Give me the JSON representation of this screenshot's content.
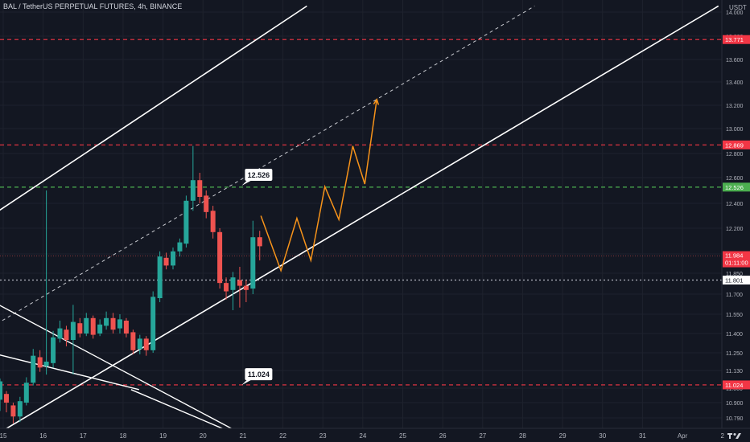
{
  "header": {
    "title": "BAL / TetherUS PERPETUAL FUTURES, 4h, BINANCE",
    "currency": "USDT"
  },
  "logo": {
    "name": "tradingview-logo-icon"
  },
  "colors": {
    "background": "#131722",
    "up": "#26a69a",
    "down": "#ef5350",
    "resistance": "#f23645",
    "support_level": "#4caf50",
    "projection": "#f7931a",
    "channel": "#ffffff",
    "grid": "#1e222d"
  },
  "chart_data": {
    "type": "candlestick",
    "timeframe": "4h",
    "x_ticks": [
      "15",
      "16",
      "17",
      "18",
      "19",
      "20",
      "21",
      "22",
      "23",
      "24",
      "25",
      "26",
      "27",
      "28",
      "29",
      "30",
      "31",
      "Apr",
      "2",
      "3"
    ],
    "y_ticks": [
      "14.000",
      "13.800",
      "13.600",
      "13.400",
      "13.200",
      "13.000",
      "12.800",
      "12.600",
      "12.400",
      "12.200",
      "12.000",
      "11.850",
      "11.700",
      "11.550",
      "11.400",
      "11.250",
      "11.130",
      "11.000",
      "10.900",
      "10.790"
    ],
    "ylim": [
      10.7,
      14.05
    ],
    "candles": [
      {
        "t": 14.92,
        "o": 10.92,
        "c": 11.05,
        "h": 11.07,
        "l": 10.84
      },
      {
        "t": 15.08,
        "o": 10.96,
        "c": 10.9,
        "h": 10.98,
        "l": 10.83
      },
      {
        "t": 15.25,
        "o": 10.88,
        "c": 10.8,
        "h": 10.9,
        "l": 10.75
      },
      {
        "t": 15.42,
        "o": 10.8,
        "c": 10.91,
        "h": 10.94,
        "l": 10.76
      },
      {
        "t": 15.58,
        "o": 10.9,
        "c": 11.04,
        "h": 11.08,
        "l": 10.88
      },
      {
        "t": 15.75,
        "o": 11.04,
        "c": 11.23,
        "h": 11.28,
        "l": 11.02
      },
      {
        "t": 15.92,
        "o": 11.22,
        "c": 11.15,
        "h": 11.27,
        "l": 11.12
      },
      {
        "t": 16.08,
        "o": 11.16,
        "c": 11.19,
        "h": 12.5,
        "l": 11.1
      },
      {
        "t": 16.25,
        "o": 11.18,
        "c": 11.37,
        "h": 11.42,
        "l": 11.15
      },
      {
        "t": 16.42,
        "o": 11.36,
        "c": 11.44,
        "h": 11.5,
        "l": 11.33
      },
      {
        "t": 16.58,
        "o": 11.43,
        "c": 11.35,
        "h": 11.46,
        "l": 11.3
      },
      {
        "t": 16.75,
        "o": 11.35,
        "c": 11.49,
        "h": 11.62,
        "l": 11.1
      },
      {
        "t": 16.92,
        "o": 11.48,
        "c": 11.4,
        "h": 11.52,
        "l": 11.37
      },
      {
        "t": 17.08,
        "o": 11.4,
        "c": 11.52,
        "h": 11.56,
        "l": 11.38
      },
      {
        "t": 17.25,
        "o": 11.52,
        "c": 11.39,
        "h": 11.54,
        "l": 11.36
      },
      {
        "t": 17.42,
        "o": 11.4,
        "c": 11.47,
        "h": 11.51,
        "l": 11.38
      },
      {
        "t": 17.58,
        "o": 11.46,
        "c": 11.52,
        "h": 11.57,
        "l": 11.43
      },
      {
        "t": 17.75,
        "o": 11.52,
        "c": 11.43,
        "h": 11.56,
        "l": 11.4
      },
      {
        "t": 17.92,
        "o": 11.44,
        "c": 11.51,
        "h": 11.55,
        "l": 11.4
      },
      {
        "t": 18.08,
        "o": 11.5,
        "c": 11.4,
        "h": 11.52,
        "l": 11.37
      },
      {
        "t": 18.25,
        "o": 11.41,
        "c": 11.27,
        "h": 11.43,
        "l": 11.24
      },
      {
        "t": 18.42,
        "o": 11.28,
        "c": 11.36,
        "h": 11.39,
        "l": 11.24
      },
      {
        "t": 18.58,
        "o": 11.36,
        "c": 11.27,
        "h": 11.38,
        "l": 11.23
      },
      {
        "t": 18.75,
        "o": 11.27,
        "c": 11.68,
        "h": 11.72,
        "l": 11.25
      },
      {
        "t": 18.92,
        "o": 11.67,
        "c": 11.98,
        "h": 12.02,
        "l": 11.64
      },
      {
        "t": 19.08,
        "o": 11.97,
        "c": 11.91,
        "h": 12.01,
        "l": 11.88
      },
      {
        "t": 19.25,
        "o": 11.91,
        "c": 12.02,
        "h": 12.05,
        "l": 11.88
      },
      {
        "t": 19.42,
        "o": 12.02,
        "c": 12.09,
        "h": 12.12,
        "l": 11.98
      },
      {
        "t": 19.58,
        "o": 12.08,
        "c": 12.42,
        "h": 12.46,
        "l": 12.05
      },
      {
        "t": 19.75,
        "o": 12.42,
        "c": 12.58,
        "h": 12.86,
        "l": 12.34
      },
      {
        "t": 19.92,
        "o": 12.58,
        "c": 12.45,
        "h": 12.64,
        "l": 12.4
      },
      {
        "t": 20.08,
        "o": 12.46,
        "c": 12.33,
        "h": 12.5,
        "l": 12.28
      },
      {
        "t": 20.25,
        "o": 12.34,
        "c": 12.17,
        "h": 12.38,
        "l": 12.12
      },
      {
        "t": 20.42,
        "o": 12.17,
        "c": 11.78,
        "h": 12.2,
        "l": 11.74
      },
      {
        "t": 20.58,
        "o": 11.78,
        "c": 11.72,
        "h": 11.82,
        "l": 11.66
      },
      {
        "t": 20.75,
        "o": 11.73,
        "c": 11.82,
        "h": 11.86,
        "l": 11.58
      },
      {
        "t": 20.92,
        "o": 11.8,
        "c": 11.76,
        "h": 11.9,
        "l": 11.6
      },
      {
        "t": 21.08,
        "o": 11.76,
        "c": 11.73,
        "h": 11.8,
        "l": 11.64
      },
      {
        "t": 21.25,
        "o": 11.74,
        "c": 12.13,
        "h": 12.26,
        "l": 11.7
      },
      {
        "t": 21.42,
        "o": 12.13,
        "c": 12.06,
        "h": 12.18,
        "l": 11.95
      }
    ],
    "price_levels": [
      {
        "value": 13.771,
        "label": "13.771",
        "style": "dashed",
        "color": "#f23645"
      },
      {
        "value": 12.869,
        "label": "12.869",
        "style": "dashed",
        "color": "#f23645"
      },
      {
        "value": 12.526,
        "label": "12.526",
        "style": "dashed",
        "color": "#4caf50"
      },
      {
        "value": 11.801,
        "label": "11.801",
        "style": "dotted",
        "color": "#b2b5be"
      },
      {
        "value": 11.024,
        "label": "11.024",
        "style": "dashed",
        "color": "#f23645"
      }
    ],
    "current_price": {
      "value": 11.984,
      "label": "11.984",
      "countdown": "01:11:00"
    },
    "callouts": [
      {
        "label": "12.526",
        "t": 21.05,
        "value": 12.62
      },
      {
        "label": "11.024",
        "t": 21.05,
        "value": 11.1
      }
    ],
    "channel_upper": [
      [
        14.7,
        12.3
      ],
      [
        22.6,
        14.05
      ]
    ],
    "channel_lower": [
      [
        15.0,
        10.7
      ],
      [
        32.9,
        14.05
      ]
    ],
    "channel_mid_dashed": [
      [
        14.7,
        11.45
      ],
      [
        28.3,
        14.05
      ]
    ],
    "descending_lines": [
      [
        [
          14.7,
          11.65
        ],
        [
          20.8,
          10.7
        ]
      ],
      [
        [
          14.7,
          11.25
        ],
        [
          18.4,
          10.99
        ]
      ],
      [
        [
          18.2,
          10.99
        ],
        [
          20.6,
          10.7
        ]
      ]
    ],
    "projection_path": [
      [
        21.45,
        12.3
      ],
      [
        21.95,
        11.87
      ],
      [
        22.35,
        12.28
      ],
      [
        22.7,
        11.95
      ],
      [
        23.05,
        12.53
      ],
      [
        23.4,
        12.27
      ],
      [
        23.75,
        12.86
      ],
      [
        24.05,
        12.55
      ],
      [
        24.35,
        13.25
      ]
    ]
  }
}
